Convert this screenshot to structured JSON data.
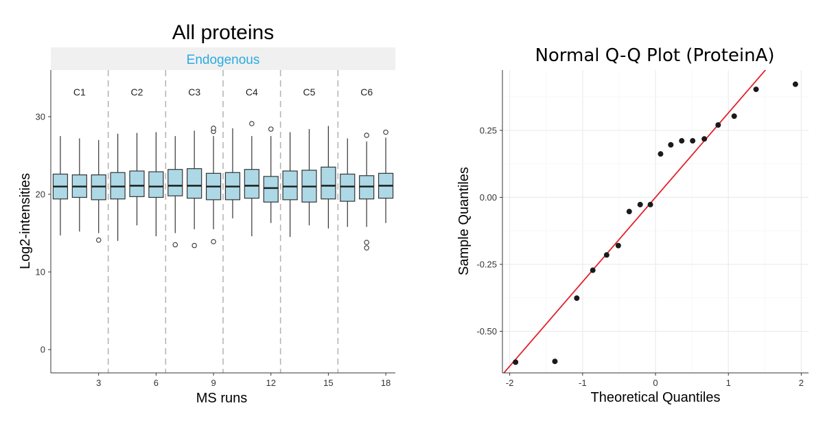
{
  "chart_data": [
    {
      "type": "box",
      "title": "All proteins",
      "facet_label": "Endogenous",
      "xlabel": "MS runs",
      "ylabel": "Log2-intensities",
      "xlim": [
        0.5,
        18.5
      ],
      "ylim": [
        -3,
        36
      ],
      "x_ticks": [
        3,
        6,
        9,
        12,
        15,
        18
      ],
      "y_ticks": [
        0,
        10,
        20,
        30
      ],
      "grid": false,
      "conditions": [
        {
          "label": "C1",
          "runs": [
            1,
            2,
            3
          ]
        },
        {
          "label": "C2",
          "runs": [
            4,
            5,
            6
          ]
        },
        {
          "label": "C3",
          "runs": [
            7,
            8,
            9
          ]
        },
        {
          "label": "C4",
          "runs": [
            10,
            11,
            12
          ]
        },
        {
          "label": "C5",
          "runs": [
            13,
            14,
            15
          ]
        },
        {
          "label": "C6",
          "runs": [
            16,
            17,
            18
          ]
        }
      ],
      "condition_boundaries": [
        3.5,
        6.5,
        9.5,
        12.5,
        15.5
      ],
      "colors": {
        "box_fill": "#add8e6",
        "facet_label": "#29abe2",
        "divider": "#b5b5b5"
      },
      "boxes": [
        {
          "run": 1,
          "whisker_low": 14.7,
          "q1": 19.4,
          "median": 21.0,
          "q3": 22.6,
          "whisker_high": 27.5,
          "outliers": []
        },
        {
          "run": 2,
          "whisker_low": 15.2,
          "q1": 19.6,
          "median": 21.0,
          "q3": 22.5,
          "whisker_high": 27.2,
          "outliers": []
        },
        {
          "run": 3,
          "whisker_low": 15.0,
          "q1": 19.3,
          "median": 21.0,
          "q3": 22.5,
          "whisker_high": 27.0,
          "outliers": [
            14.1
          ]
        },
        {
          "run": 4,
          "whisker_low": 14.0,
          "q1": 19.4,
          "median": 21.0,
          "q3": 22.8,
          "whisker_high": 27.8,
          "outliers": []
        },
        {
          "run": 5,
          "whisker_low": 16.0,
          "q1": 19.7,
          "median": 21.1,
          "q3": 23.0,
          "whisker_high": 27.9,
          "outliers": []
        },
        {
          "run": 6,
          "whisker_low": 14.6,
          "q1": 19.6,
          "median": 21.0,
          "q3": 22.9,
          "whisker_high": 28.0,
          "outliers": []
        },
        {
          "run": 7,
          "whisker_low": 15.0,
          "q1": 19.8,
          "median": 21.1,
          "q3": 23.2,
          "whisker_high": 27.5,
          "outliers": [
            13.5
          ]
        },
        {
          "run": 8,
          "whisker_low": 15.5,
          "q1": 19.5,
          "median": 21.1,
          "q3": 23.3,
          "whisker_high": 28.2,
          "outliers": [
            13.4
          ]
        },
        {
          "run": 9,
          "whisker_low": 15.5,
          "q1": 19.3,
          "median": 21.0,
          "q3": 22.7,
          "whisker_high": 27.5,
          "outliers": [
            13.9,
            28.1,
            28.5
          ]
        },
        {
          "run": 10,
          "whisker_low": 16.9,
          "q1": 19.3,
          "median": 21.0,
          "q3": 22.8,
          "whisker_high": 28.5,
          "outliers": []
        },
        {
          "run": 11,
          "whisker_low": 14.6,
          "q1": 19.5,
          "median": 21.1,
          "q3": 23.2,
          "whisker_high": 27.5,
          "outliers": [
            29.1
          ]
        },
        {
          "run": 12,
          "whisker_low": 16.3,
          "q1": 19.0,
          "median": 20.8,
          "q3": 22.3,
          "whisker_high": 27.5,
          "outliers": [
            28.4
          ]
        },
        {
          "run": 13,
          "whisker_low": 14.5,
          "q1": 19.3,
          "median": 21.0,
          "q3": 23.0,
          "whisker_high": 28.0,
          "outliers": []
        },
        {
          "run": 14,
          "whisker_low": 16.0,
          "q1": 19.0,
          "median": 21.0,
          "q3": 23.1,
          "whisker_high": 28.4,
          "outliers": []
        },
        {
          "run": 15,
          "whisker_low": 15.6,
          "q1": 19.4,
          "median": 21.1,
          "q3": 23.5,
          "whisker_high": 28.8,
          "outliers": []
        },
        {
          "run": 16,
          "whisker_low": 15.8,
          "q1": 19.1,
          "median": 21.0,
          "q3": 22.6,
          "whisker_high": 27.2,
          "outliers": []
        },
        {
          "run": 17,
          "whisker_low": 15.8,
          "q1": 19.4,
          "median": 21.0,
          "q3": 22.4,
          "whisker_high": 26.8,
          "outliers": [
            27.6,
            13.8,
            13.1
          ]
        },
        {
          "run": 18,
          "whisker_low": 16.3,
          "q1": 19.5,
          "median": 21.1,
          "q3": 22.7,
          "whisker_high": 27.3,
          "outliers": [
            28.0
          ]
        }
      ]
    },
    {
      "type": "scatter",
      "title": "Normal Q-Q Plot (ProteinA)",
      "xlabel": "Theoretical Quantiles",
      "ylabel": "Sample Quantiles",
      "xlim": [
        -2.1,
        2.1
      ],
      "ylim": [
        -0.655,
        0.475
      ],
      "x_ticks": [
        "-2",
        "-1",
        "0",
        "1",
        "2"
      ],
      "x_tick_values": [
        -2,
        -1,
        0,
        1,
        2
      ],
      "y_ticks": [
        "-0.50",
        "-0.25",
        "0.00",
        "0.25"
      ],
      "y_tick_values": [
        -0.5,
        -0.25,
        0,
        0.25
      ],
      "grid": true,
      "colors": {
        "point": "#1a1a1a",
        "reference_line": "#e0202a",
        "grid": "#ebebeb"
      },
      "reference_line": {
        "intercept": 0.0,
        "slope": 0.315
      },
      "points": [
        {
          "x": -1.92,
          "y": -0.615
        },
        {
          "x": -1.38,
          "y": -0.612
        },
        {
          "x": -1.08,
          "y": -0.376
        },
        {
          "x": -0.86,
          "y": -0.272
        },
        {
          "x": -0.67,
          "y": -0.215
        },
        {
          "x": -0.51,
          "y": -0.18
        },
        {
          "x": -0.36,
          "y": -0.053
        },
        {
          "x": -0.21,
          "y": -0.027
        },
        {
          "x": -0.07,
          "y": -0.027
        },
        {
          "x": 0.07,
          "y": 0.162
        },
        {
          "x": 0.21,
          "y": 0.196
        },
        {
          "x": 0.36,
          "y": 0.211
        },
        {
          "x": 0.51,
          "y": 0.211
        },
        {
          "x": 0.67,
          "y": 0.218
        },
        {
          "x": 0.86,
          "y": 0.27
        },
        {
          "x": 1.08,
          "y": 0.303
        },
        {
          "x": 1.38,
          "y": 0.403
        },
        {
          "x": 1.92,
          "y": 0.422
        }
      ]
    }
  ]
}
